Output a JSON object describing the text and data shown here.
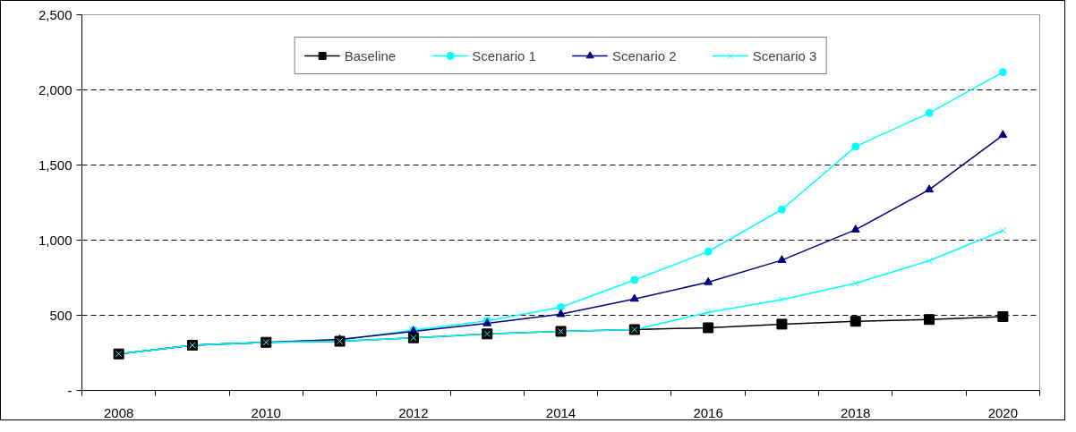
{
  "chart_data": {
    "type": "line",
    "categories": [
      "2008",
      null,
      "2010",
      null,
      "2012",
      null,
      "2014",
      null,
      "2016",
      null,
      "2018",
      null,
      "2020"
    ],
    "series": [
      {
        "name": "Baseline",
        "color": "#000000",
        "marker": "square",
        "values": [
          243,
          301,
          320,
          327,
          350,
          376,
          393,
          405,
          417,
          441,
          460,
          472,
          491
        ]
      },
      {
        "name": "Scenario 1",
        "color": "#00ffff",
        "marker": "circle",
        "values": [
          243,
          301,
          320,
          335,
          402,
          463,
          554,
          735,
          924,
          1204,
          1623,
          1846,
          2118
        ]
      },
      {
        "name": "Scenario 2",
        "color": "#000080",
        "marker": "triangle",
        "values": [
          243,
          301,
          320,
          339,
          393,
          446,
          507,
          609,
          720,
          867,
          1069,
          1336,
          1699
        ]
      },
      {
        "name": "Scenario 3",
        "color": "#00ffff",
        "marker": "cross",
        "values": [
          243,
          301,
          320,
          327,
          350,
          376,
          393,
          405,
          519,
          604,
          713,
          863,
          1064
        ]
      }
    ],
    "ylim": [
      0,
      2500
    ],
    "yticks": [
      {
        "value": 0,
        "label": "-"
      },
      500,
      {
        "value": 1000,
        "label": "1,000"
      },
      {
        "value": 1500,
        "label": "1,500"
      },
      {
        "value": 2000,
        "label": "2,000"
      },
      {
        "value": 2500,
        "label": "2,500"
      }
    ],
    "grid": "y",
    "legend": "top",
    "line_style": "solid"
  }
}
